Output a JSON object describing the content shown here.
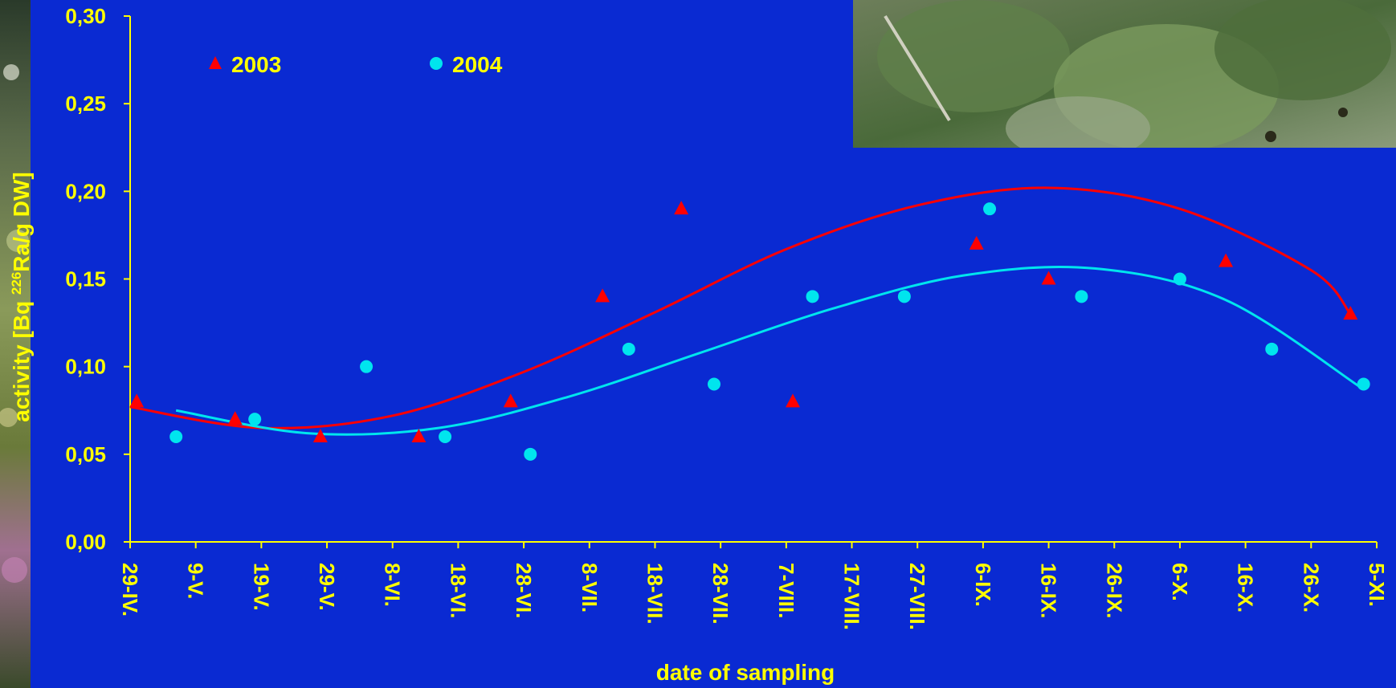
{
  "chart_data": {
    "type": "scatter",
    "title": "",
    "xlabel": "date of sampling",
    "ylabel": {
      "pre": "activity [Bq ",
      "sup": "226",
      "post": "Ra/g DW]"
    },
    "x_unit": "date",
    "x_ticks": [
      "29-IV.",
      "9-V.",
      "19-V.",
      "29-V.",
      "8-VI.",
      "18-VI.",
      "28-VI.",
      "8-VII.",
      "18-VII.",
      "28-VII.",
      "7-VIII.",
      "17-VIII.",
      "27-VIII.",
      "6-IX.",
      "16-IX.",
      "26-IX.",
      "6-X.",
      "16-X.",
      "26-X.",
      "5-XI."
    ],
    "y_ticks": [
      "0,00",
      "0,05",
      "0,10",
      "0,15",
      "0,20",
      "0,25",
      "0,30"
    ],
    "xlim": [
      "04-29",
      "11-05"
    ],
    "ylim": [
      0,
      0.3
    ],
    "legend_position": "top-left",
    "grid": false,
    "colors": {
      "background": "#0a2ad2",
      "text": "#ffff00",
      "axis": "#ffff00",
      "s2003": "#ff0000",
      "s2004": "#00e5ee"
    },
    "series": [
      {
        "name": "2003",
        "marker": "triangle",
        "color": "#ff0000",
        "points": [
          {
            "x": "04-30",
            "y": 0.08
          },
          {
            "x": "05-15",
            "y": 0.07
          },
          {
            "x": "05-28",
            "y": 0.06
          },
          {
            "x": "06-12",
            "y": 0.06
          },
          {
            "x": "06-26",
            "y": 0.08
          },
          {
            "x": "07-10",
            "y": 0.14
          },
          {
            "x": "07-22",
            "y": 0.19
          },
          {
            "x": "08-08",
            "y": 0.08
          },
          {
            "x": "09-05",
            "y": 0.17
          },
          {
            "x": "09-16",
            "y": 0.15
          },
          {
            "x": "10-13",
            "y": 0.16
          },
          {
            "x": "11-01",
            "y": 0.13
          }
        ],
        "trend": [
          {
            "x": "04-29",
            "y": 0.077
          },
          {
            "x": "05-19",
            "y": 0.065
          },
          {
            "x": "06-08",
            "y": 0.072
          },
          {
            "x": "06-28",
            "y": 0.097
          },
          {
            "x": "07-18",
            "y": 0.131
          },
          {
            "x": "08-07",
            "y": 0.167
          },
          {
            "x": "08-27",
            "y": 0.192
          },
          {
            "x": "09-16",
            "y": 0.202
          },
          {
            "x": "10-06",
            "y": 0.19
          },
          {
            "x": "10-26",
            "y": 0.155
          },
          {
            "x": "11-01",
            "y": 0.13
          }
        ]
      },
      {
        "name": "2004",
        "marker": "circle",
        "color": "#00e5ee",
        "points": [
          {
            "x": "05-06",
            "y": 0.06
          },
          {
            "x": "05-18",
            "y": 0.07
          },
          {
            "x": "06-04",
            "y": 0.1
          },
          {
            "x": "06-16",
            "y": 0.06
          },
          {
            "x": "06-29",
            "y": 0.05
          },
          {
            "x": "07-14",
            "y": 0.11
          },
          {
            "x": "07-27",
            "y": 0.09
          },
          {
            "x": "08-11",
            "y": 0.14
          },
          {
            "x": "08-25",
            "y": 0.14
          },
          {
            "x": "09-07",
            "y": 0.19
          },
          {
            "x": "09-21",
            "y": 0.14
          },
          {
            "x": "10-06",
            "y": 0.15
          },
          {
            "x": "10-20",
            "y": 0.11
          },
          {
            "x": "11-03",
            "y": 0.09
          }
        ],
        "trend": [
          {
            "x": "05-06",
            "y": 0.075
          },
          {
            "x": "05-26",
            "y": 0.062
          },
          {
            "x": "06-15",
            "y": 0.065
          },
          {
            "x": "07-05",
            "y": 0.083
          },
          {
            "x": "07-25",
            "y": 0.108
          },
          {
            "x": "08-14",
            "y": 0.133
          },
          {
            "x": "09-03",
            "y": 0.152
          },
          {
            "x": "09-23",
            "y": 0.156
          },
          {
            "x": "10-13",
            "y": 0.138
          },
          {
            "x": "11-03",
            "y": 0.087
          }
        ]
      }
    ]
  }
}
